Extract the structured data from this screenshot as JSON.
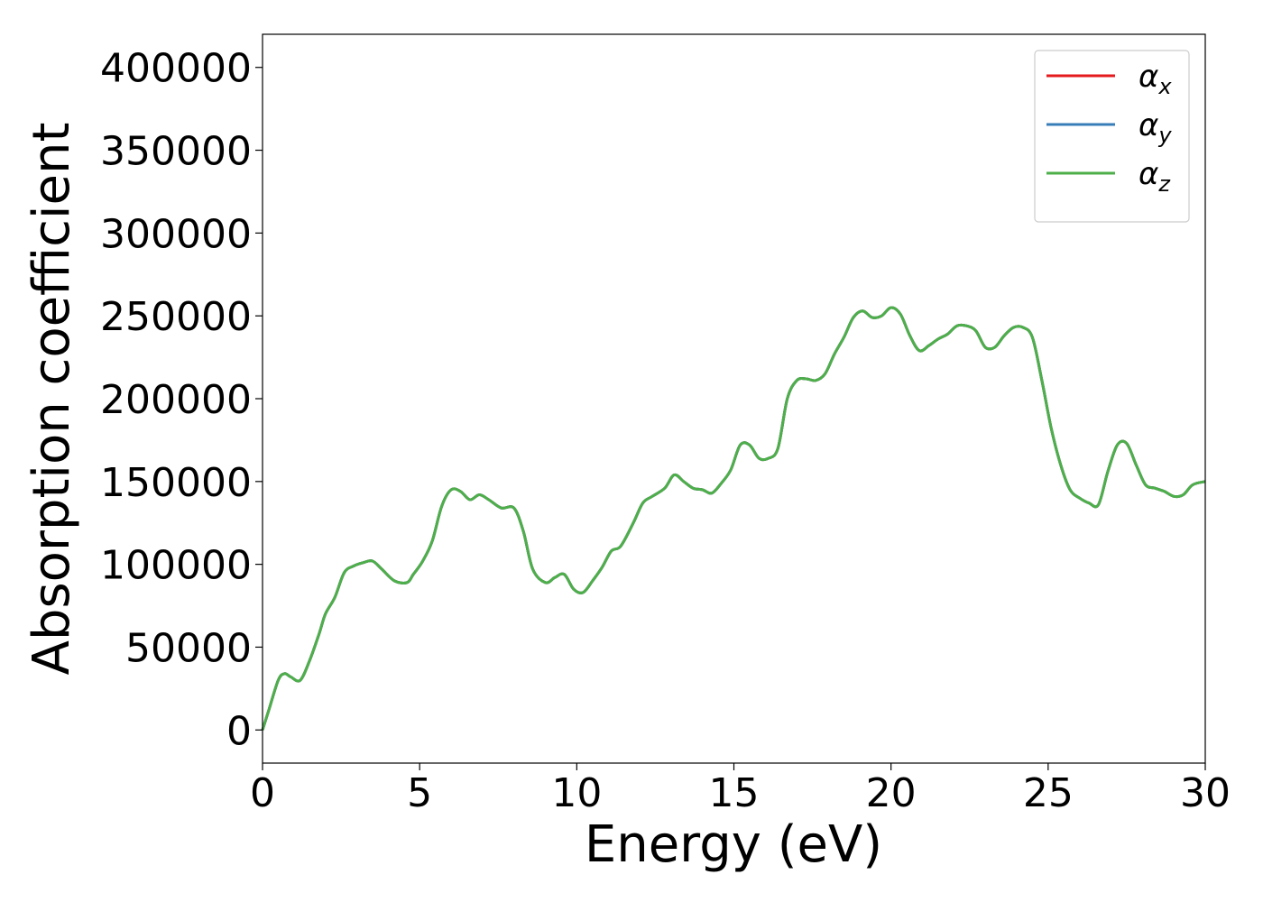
{
  "chart_data": {
    "type": "line",
    "xlabel": "Energy (eV)",
    "ylabel": "Absorption coefficient",
    "xlim": [
      0,
      30
    ],
    "ylim": [
      -20000,
      420000
    ],
    "x_ticks": [
      0,
      5,
      10,
      15,
      20,
      25,
      30
    ],
    "y_ticks": [
      0,
      50000,
      100000,
      150000,
      200000,
      250000,
      300000,
      350000,
      400000
    ],
    "grid": false,
    "legend_position": "top-right",
    "series": [
      {
        "name": "α",
        "subscript": "x",
        "color": "#e41a1c",
        "x": [
          0,
          0.2,
          0.5,
          0.7,
          0.9,
          1.2,
          1.5,
          1.8,
          2.0,
          2.3,
          2.6,
          2.9,
          3.2,
          3.5,
          3.8,
          4.2,
          4.6,
          4.8,
          5.1,
          5.4,
          5.7,
          6.0,
          6.3,
          6.6,
          6.9,
          7.2,
          7.6,
          8.0,
          8.3,
          8.6,
          9.0,
          9.3,
          9.6,
          9.9,
          10.2,
          10.5,
          10.8,
          11.1,
          11.4,
          11.8,
          12.1,
          12.4,
          12.8,
          13.1,
          13.4,
          13.7,
          14.0,
          14.3,
          14.6,
          14.9,
          15.2,
          15.5,
          15.8,
          16.1,
          16.4,
          16.7,
          17.0,
          17.3,
          17.6,
          17.9,
          18.2,
          18.5,
          18.8,
          19.1,
          19.4,
          19.7,
          20.0,
          20.3,
          20.6,
          20.9,
          21.2,
          21.5,
          21.8,
          22.1,
          22.4,
          22.7,
          23.0,
          23.3,
          23.6,
          23.9,
          24.2,
          24.5,
          24.8,
          25.1,
          25.4,
          25.7,
          26.0,
          26.3,
          26.6,
          26.9,
          27.2,
          27.5,
          27.8,
          28.1,
          28.4,
          28.7,
          29.0,
          29.3,
          29.6,
          30.0
        ],
        "values": [
          0,
          12000,
          30000,
          34000,
          32000,
          30000,
          42000,
          58000,
          70000,
          80000,
          95000,
          99000,
          101000,
          102000,
          97000,
          90000,
          89000,
          94000,
          102000,
          114000,
          135000,
          145000,
          144000,
          139000,
          142000,
          139000,
          134000,
          134000,
          120000,
          97000,
          89000,
          92000,
          94000,
          85000,
          83000,
          90000,
          98000,
          108000,
          111000,
          125000,
          137000,
          141000,
          146000,
          154000,
          150000,
          146000,
          145000,
          143000,
          149000,
          157000,
          172000,
          172000,
          164000,
          164000,
          170000,
          200000,
          211000,
          212000,
          211000,
          215000,
          227000,
          237000,
          249000,
          253000,
          249000,
          250000,
          255000,
          251000,
          238000,
          229000,
          232000,
          236000,
          239000,
          244000,
          244000,
          241000,
          231000,
          231000,
          238000,
          243000,
          243000,
          237000,
          211000,
          182000,
          160000,
          145000,
          140000,
          137000,
          136000,
          156000,
          172000,
          173000,
          160000,
          148000,
          146000,
          144000,
          141000,
          142000,
          148000,
          150000
        ]
      },
      {
        "name": "α",
        "subscript": "y",
        "color": "#377eb8",
        "x": [
          0,
          0.2,
          0.5,
          0.7,
          0.9,
          1.2,
          1.5,
          1.8,
          2.0,
          2.3,
          2.6,
          2.9,
          3.2,
          3.5,
          3.8,
          4.2,
          4.6,
          4.8,
          5.1,
          5.4,
          5.7,
          6.0,
          6.3,
          6.6,
          6.9,
          7.2,
          7.6,
          8.0,
          8.3,
          8.6,
          9.0,
          9.3,
          9.6,
          9.9,
          10.2,
          10.5,
          10.8,
          11.1,
          11.4,
          11.8,
          12.1,
          12.4,
          12.8,
          13.1,
          13.4,
          13.7,
          14.0,
          14.3,
          14.6,
          14.9,
          15.2,
          15.5,
          15.8,
          16.1,
          16.4,
          16.7,
          17.0,
          17.3,
          17.6,
          17.9,
          18.2,
          18.5,
          18.8,
          19.1,
          19.4,
          19.7,
          20.0,
          20.3,
          20.6,
          20.9,
          21.2,
          21.5,
          21.8,
          22.1,
          22.4,
          22.7,
          23.0,
          23.3,
          23.6,
          23.9,
          24.2,
          24.5,
          24.8,
          25.1,
          25.4,
          25.7,
          26.0,
          26.3,
          26.6,
          26.9,
          27.2,
          27.5,
          27.8,
          28.1,
          28.4,
          28.7,
          29.0,
          29.3,
          29.6,
          30.0
        ],
        "values": [
          0,
          12000,
          30000,
          34000,
          32000,
          30000,
          42000,
          58000,
          70000,
          80000,
          95000,
          99000,
          101000,
          102000,
          97000,
          90000,
          89000,
          94000,
          102000,
          114000,
          135000,
          145000,
          144000,
          139000,
          142000,
          139000,
          134000,
          134000,
          120000,
          97000,
          89000,
          92000,
          94000,
          85000,
          83000,
          90000,
          98000,
          108000,
          111000,
          125000,
          137000,
          141000,
          146000,
          154000,
          150000,
          146000,
          145000,
          143000,
          149000,
          157000,
          172000,
          172000,
          164000,
          164000,
          170000,
          200000,
          211000,
          212000,
          211000,
          215000,
          227000,
          237000,
          249000,
          253000,
          249000,
          250000,
          255000,
          251000,
          238000,
          229000,
          232000,
          236000,
          239000,
          244000,
          244000,
          241000,
          231000,
          231000,
          238000,
          243000,
          243000,
          237000,
          211000,
          182000,
          160000,
          145000,
          140000,
          137000,
          136000,
          156000,
          172000,
          173000,
          160000,
          148000,
          146000,
          144000,
          141000,
          142000,
          148000,
          150000
        ]
      },
      {
        "name": "α",
        "subscript": "z",
        "color": "#4daf4a",
        "x": [
          0,
          0.2,
          0.5,
          0.7,
          0.9,
          1.2,
          1.5,
          1.8,
          2.0,
          2.3,
          2.6,
          2.9,
          3.2,
          3.5,
          3.8,
          4.2,
          4.6,
          4.8,
          5.1,
          5.4,
          5.7,
          6.0,
          6.3,
          6.6,
          6.9,
          7.2,
          7.6,
          8.0,
          8.3,
          8.6,
          9.0,
          9.3,
          9.6,
          9.9,
          10.2,
          10.5,
          10.8,
          11.1,
          11.4,
          11.8,
          12.1,
          12.4,
          12.8,
          13.1,
          13.4,
          13.7,
          14.0,
          14.3,
          14.6,
          14.9,
          15.2,
          15.5,
          15.8,
          16.1,
          16.4,
          16.7,
          17.0,
          17.3,
          17.6,
          17.9,
          18.2,
          18.5,
          18.8,
          19.1,
          19.4,
          19.7,
          20.0,
          20.3,
          20.6,
          20.9,
          21.2,
          21.5,
          21.8,
          22.1,
          22.4,
          22.7,
          23.0,
          23.3,
          23.6,
          23.9,
          24.2,
          24.5,
          24.8,
          25.1,
          25.4,
          25.7,
          26.0,
          26.3,
          26.6,
          26.9,
          27.2,
          27.5,
          27.8,
          28.1,
          28.4,
          28.7,
          29.0,
          29.3,
          29.6,
          30.0
        ],
        "values": [
          0,
          12000,
          30000,
          34000,
          32000,
          30000,
          42000,
          58000,
          70000,
          80000,
          95000,
          99000,
          101000,
          102000,
          97000,
          90000,
          89000,
          94000,
          102000,
          114000,
          135000,
          145000,
          144000,
          139000,
          142000,
          139000,
          134000,
          134000,
          120000,
          97000,
          89000,
          92000,
          94000,
          85000,
          83000,
          90000,
          98000,
          108000,
          111000,
          125000,
          137000,
          141000,
          146000,
          154000,
          150000,
          146000,
          145000,
          143000,
          149000,
          157000,
          172000,
          172000,
          164000,
          164000,
          170000,
          200000,
          211000,
          212000,
          211000,
          215000,
          227000,
          237000,
          249000,
          253000,
          249000,
          250000,
          255000,
          251000,
          238000,
          229000,
          232000,
          236000,
          239000,
          244000,
          244000,
          241000,
          231000,
          231000,
          238000,
          243000,
          243000,
          237000,
          211000,
          182000,
          160000,
          145000,
          140000,
          137000,
          136000,
          156000,
          172000,
          173000,
          160000,
          148000,
          146000,
          144000,
          141000,
          142000,
          148000,
          150000
        ]
      }
    ]
  }
}
